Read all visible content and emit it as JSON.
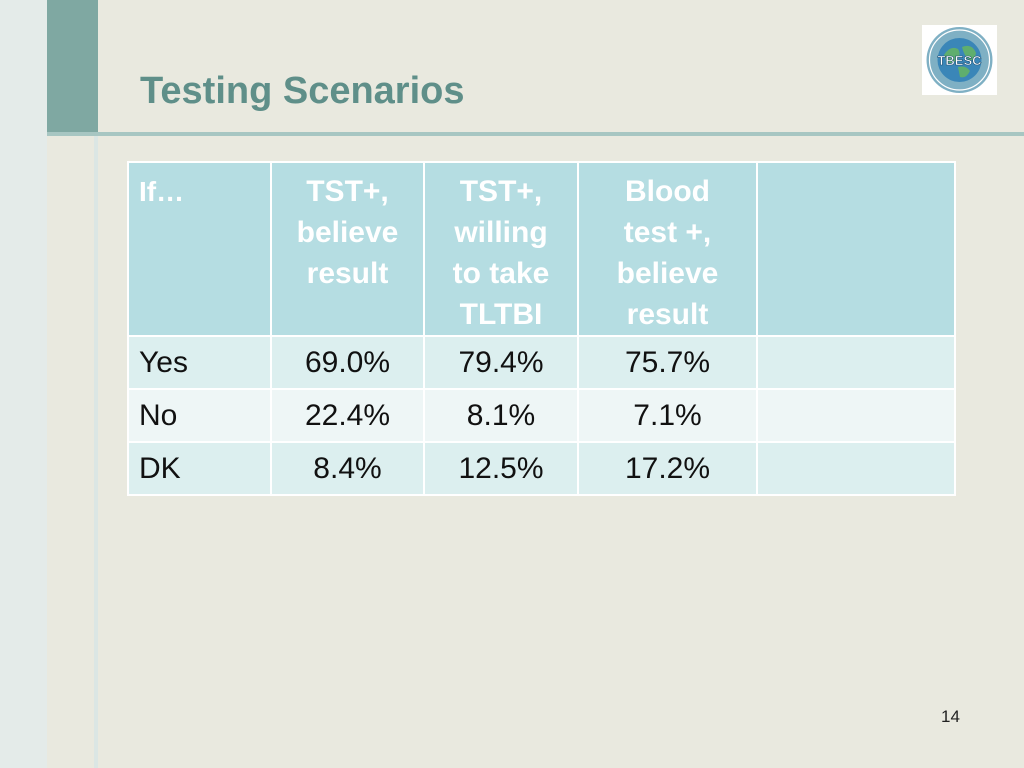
{
  "slide": {
    "title": "Testing Scenarios",
    "page_number": "14",
    "logo_text": "TBESC"
  },
  "table": {
    "headers": [
      "If…",
      "TST+, believe result",
      "TST+, willing to take TLTBI",
      "Blood test +, believe result",
      ""
    ],
    "header_lines": [
      [
        "If…"
      ],
      [
        "TST+,",
        "believe",
        "result"
      ],
      [
        "TST+,",
        "willing",
        "to take",
        "TLTBI"
      ],
      [
        "Blood",
        "test +,",
        "believe",
        "result"
      ],
      [
        ""
      ]
    ],
    "rows": [
      [
        "Yes",
        "69.0%",
        "79.4%",
        "75.7%",
        ""
      ],
      [
        "No",
        "22.4%",
        "8.1%",
        "7.1%",
        ""
      ],
      [
        "DK",
        "8.4%",
        "12.5%",
        "17.2%",
        ""
      ]
    ]
  },
  "colors": {
    "title": "#5f8f89",
    "header_bg": "#b5dde2",
    "row_odd_bg": "#dcefef",
    "row_even_bg": "#eef6f6",
    "accent": "#7fa8a2"
  }
}
